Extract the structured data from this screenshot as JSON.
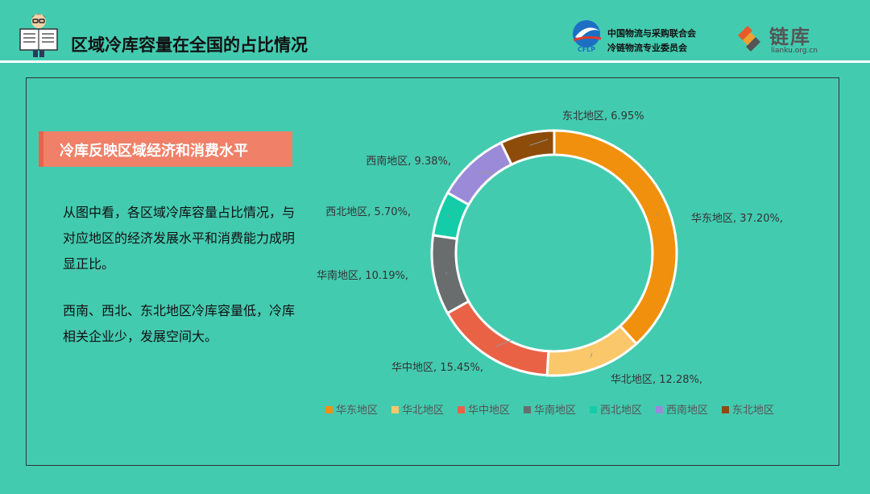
{
  "header": {
    "title": "区域冷库容量在全国的占比情况",
    "org_name_line1": "中国物流与采购联合会",
    "org_name_line2": "冷链物流专业委员会",
    "org_abbr": "CFLP",
    "brand_name": "链库",
    "brand_url": "lianku.org.cn"
  },
  "section": {
    "tag": "冷库反映区域经济和消费水平",
    "paragraph1": "从图中看，各区域冷库容量占比情况，与对应地区的经济发展水平和消费能力成明显正比。",
    "paragraph2": "西南、西北、东北地区冷库容量低，冷库相关企业少，发展空间大。"
  },
  "chart_data": {
    "type": "pie",
    "donut": true,
    "title": "",
    "legend_position": "bottom",
    "labels": [
      "华东地区",
      "华北地区",
      "华中地区",
      "华南地区",
      "西北地区",
      "西南地区",
      "东北地区"
    ],
    "values": [
      37.2,
      12.28,
      15.45,
      10.19,
      5.7,
      9.38,
      6.95
    ],
    "data_labels": [
      "华东地区, 37.20%,",
      "华北地区, 12.28%,",
      "华中地区, 15.45%,",
      "华南地区, 10.19%,",
      "西北地区, 5.70%,",
      "西南地区, 9.38%,",
      "东北地区, 6.95%"
    ],
    "colors": [
      "#f0900c",
      "#fbc76b",
      "#ea6245",
      "#6a6d6d",
      "#14cca8",
      "#9a8ad8",
      "#8d4c0a"
    ]
  }
}
